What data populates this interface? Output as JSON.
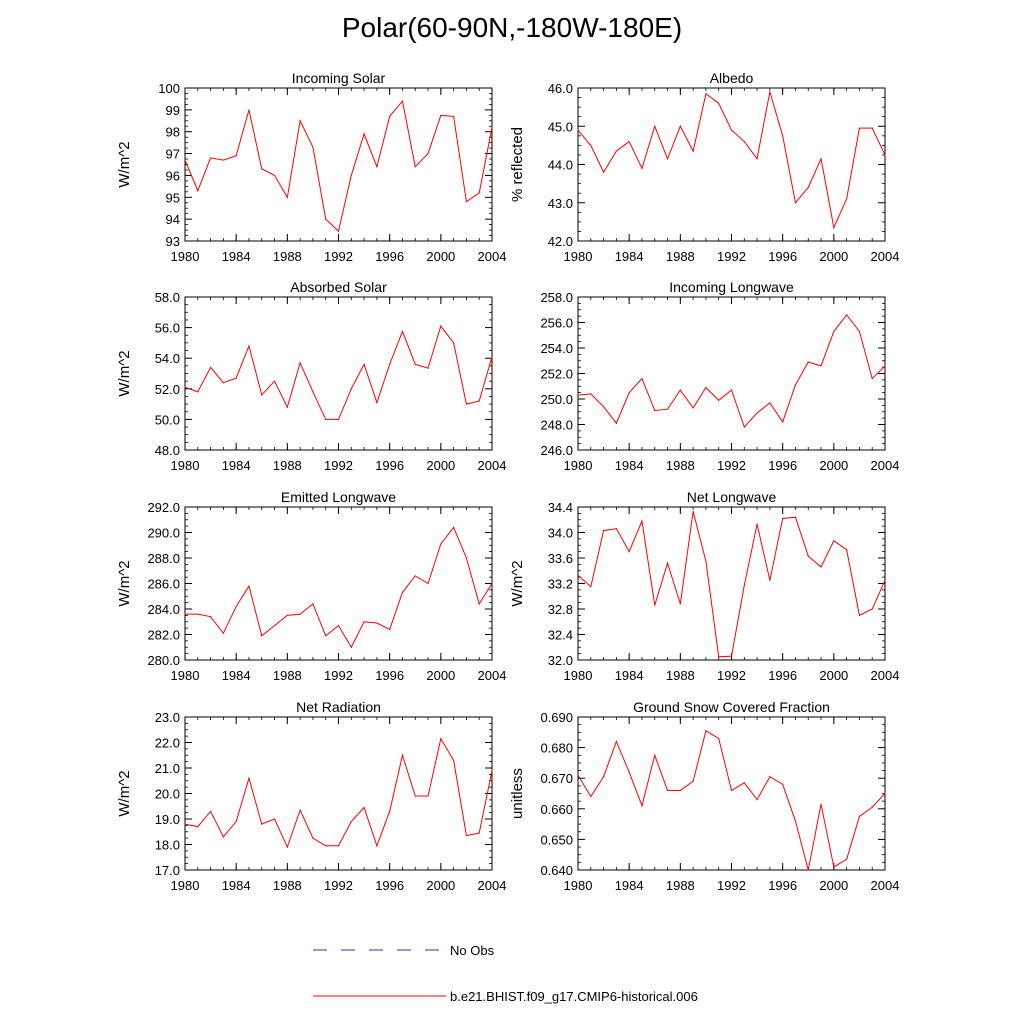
{
  "title": "Polar(60-90N,-180W-180E)",
  "colors": {
    "model": "#ff0000",
    "obs": "#3333aa",
    "axis": "#000000"
  },
  "legend": {
    "obs_label": "No Obs",
    "model_label": "b.e21.BHIST.f09_g17.CMIP6-historical.006"
  },
  "chart_data": [
    {
      "type": "line",
      "title": "Incoming Solar",
      "ylabel": "W/m^2",
      "xlim": [
        1980,
        2004
      ],
      "ylim": [
        93,
        100
      ],
      "yticks": [
        93,
        94,
        95,
        96,
        97,
        98,
        99,
        100
      ],
      "ytick_labels": [
        "93",
        "94",
        "95",
        "96",
        "97",
        "98",
        "99",
        "100"
      ],
      "xticks": [
        1980,
        1984,
        1988,
        1992,
        1996,
        2000,
        2004
      ],
      "xtick_labels": [
        "1980",
        "1984",
        "1988",
        "1992",
        "1996",
        "2000",
        "2004"
      ],
      "x": [
        1980,
        1981,
        1982,
        1983,
        1984,
        1985,
        1986,
        1987,
        1988,
        1989,
        1990,
        1991,
        1992,
        1993,
        1994,
        1995,
        1996,
        1997,
        1998,
        1999,
        2000,
        2001,
        2002,
        2003,
        2004
      ],
      "series": [
        {
          "name": "b.e21.BHIST.f09_g17.CMIP6-historical.006",
          "values": [
            96.7,
            95.3,
            96.8,
            96.7,
            96.9,
            99.0,
            96.3,
            96.0,
            95.0,
            98.5,
            97.3,
            94.0,
            93.45,
            96.0,
            97.9,
            96.4,
            98.7,
            99.4,
            96.4,
            97.0,
            98.75,
            98.7,
            94.8,
            95.2,
            98.2
          ]
        }
      ]
    },
    {
      "type": "line",
      "title": "Albedo",
      "ylabel": "% reflected",
      "xlim": [
        1980,
        2004
      ],
      "ylim": [
        42,
        46
      ],
      "yticks": [
        42,
        43,
        44,
        45,
        46
      ],
      "ytick_labels": [
        "42.0",
        "43.0",
        "44.0",
        "45.0",
        "46.0"
      ],
      "xticks": [
        1980,
        1984,
        1988,
        1992,
        1996,
        2000,
        2004
      ],
      "xtick_labels": [
        "1980",
        "1984",
        "1988",
        "1992",
        "1996",
        "2000",
        "2004"
      ],
      "x": [
        1980,
        1981,
        1982,
        1983,
        1984,
        1985,
        1986,
        1987,
        1988,
        1989,
        1990,
        1991,
        1992,
        1993,
        1994,
        1995,
        1996,
        1997,
        1998,
        1999,
        2000,
        2001,
        2002,
        2003,
        2004
      ],
      "series": [
        {
          "name": "b.e21.BHIST.f09_g17.CMIP6-historical.006",
          "values": [
            44.9,
            44.5,
            43.8,
            44.35,
            44.6,
            43.9,
            45.0,
            44.15,
            45.0,
            44.35,
            45.85,
            45.6,
            44.9,
            44.6,
            44.15,
            45.9,
            44.75,
            43.0,
            43.4,
            44.15,
            42.35,
            43.1,
            44.95,
            44.95,
            44.25
          ]
        }
      ]
    },
    {
      "type": "line",
      "title": "Absorbed Solar",
      "ylabel": "W/m^2",
      "xlim": [
        1980,
        2004
      ],
      "ylim": [
        48,
        58
      ],
      "yticks": [
        48,
        50,
        52,
        54,
        56,
        58
      ],
      "ytick_labels": [
        "48.0",
        "50.0",
        "52.0",
        "54.0",
        "56.0",
        "58.0"
      ],
      "xticks": [
        1980,
        1984,
        1988,
        1992,
        1996,
        2000,
        2004
      ],
      "xtick_labels": [
        "1980",
        "1984",
        "1988",
        "1992",
        "1996",
        "2000",
        "2004"
      ],
      "x": [
        1980,
        1981,
        1982,
        1983,
        1984,
        1985,
        1986,
        1987,
        1988,
        1989,
        1990,
        1991,
        1992,
        1993,
        1994,
        1995,
        1996,
        1997,
        1998,
        1999,
        2000,
        2001,
        2002,
        2003,
        2004
      ],
      "series": [
        {
          "name": "b.e21.BHIST.f09_g17.CMIP6-historical.006",
          "values": [
            52.1,
            51.8,
            53.4,
            52.4,
            52.7,
            54.8,
            51.6,
            52.5,
            50.8,
            53.7,
            51.8,
            50.0,
            50.0,
            52.0,
            53.6,
            51.1,
            53.6,
            55.75,
            53.6,
            53.35,
            56.1,
            55.0,
            51.0,
            51.2,
            54.1
          ]
        }
      ]
    },
    {
      "type": "line",
      "title": "Incoming Longwave",
      "ylabel": "",
      "xlim": [
        1980,
        2004
      ],
      "ylim": [
        246,
        258
      ],
      "yticks": [
        246,
        248,
        250,
        252,
        254,
        256,
        258
      ],
      "ytick_labels": [
        "246.0",
        "248.0",
        "250.0",
        "252.0",
        "254.0",
        "256.0",
        "258.0"
      ],
      "xticks": [
        1980,
        1984,
        1988,
        1992,
        1996,
        2000,
        2004
      ],
      "xtick_labels": [
        "1980",
        "1984",
        "1988",
        "1992",
        "1996",
        "2000",
        "2004"
      ],
      "x": [
        1980,
        1981,
        1982,
        1983,
        1984,
        1985,
        1986,
        1987,
        1988,
        1989,
        1990,
        1991,
        1992,
        1993,
        1994,
        1995,
        1996,
        1997,
        1998,
        1999,
        2000,
        2001,
        2002,
        2003,
        2004
      ],
      "series": [
        {
          "name": "b.e21.BHIST.f09_g17.CMIP6-historical.006",
          "values": [
            250.3,
            250.4,
            249.4,
            248.1,
            250.5,
            251.6,
            249.1,
            249.2,
            250.7,
            249.3,
            250.9,
            249.9,
            250.7,
            247.8,
            248.9,
            249.7,
            248.2,
            251.1,
            252.9,
            252.6,
            255.3,
            256.6,
            255.3,
            251.6,
            252.6
          ]
        }
      ]
    },
    {
      "type": "line",
      "title": "Emitted Longwave",
      "ylabel": "W/m^2",
      "xlim": [
        1980,
        2004
      ],
      "ylim": [
        280,
        292
      ],
      "yticks": [
        280,
        282,
        284,
        286,
        288,
        290,
        292
      ],
      "ytick_labels": [
        "280.0",
        "282.0",
        "284.0",
        "286.0",
        "288.0",
        "290.0",
        "292.0"
      ],
      "xticks": [
        1980,
        1984,
        1988,
        1992,
        1996,
        2000,
        2004
      ],
      "xtick_labels": [
        "1980",
        "1984",
        "1988",
        "1992",
        "1996",
        "2000",
        "2004"
      ],
      "x": [
        1980,
        1981,
        1982,
        1983,
        1984,
        1985,
        1986,
        1987,
        1988,
        1989,
        1990,
        1991,
        1992,
        1993,
        1994,
        1995,
        1996,
        1997,
        1998,
        1999,
        2000,
        2001,
        2002,
        2003,
        2004
      ],
      "series": [
        {
          "name": "b.e21.BHIST.f09_g17.CMIP6-historical.006",
          "values": [
            283.6,
            283.6,
            283.4,
            282.1,
            284.2,
            285.8,
            281.9,
            282.7,
            283.5,
            283.6,
            284.4,
            281.9,
            282.7,
            281.0,
            283.0,
            282.9,
            282.4,
            285.3,
            286.6,
            286.0,
            289.1,
            290.4,
            288.0,
            284.4,
            286.0
          ]
        }
      ]
    },
    {
      "type": "line",
      "title": "Net Longwave",
      "ylabel": "W/m^2",
      "xlim": [
        1980,
        2004
      ],
      "ylim": [
        32.0,
        34.4
      ],
      "yticks": [
        32.0,
        32.4,
        32.8,
        33.2,
        33.6,
        34.0,
        34.4
      ],
      "ytick_labels": [
        "32.0",
        "32.4",
        "32.8",
        "33.2",
        "33.6",
        "34.0",
        "34.4"
      ],
      "xticks": [
        1980,
        1984,
        1988,
        1992,
        1996,
        2000,
        2004
      ],
      "xtick_labels": [
        "1980",
        "1984",
        "1988",
        "1992",
        "1996",
        "2000",
        "2004"
      ],
      "x": [
        1980,
        1981,
        1982,
        1983,
        1984,
        1985,
        1986,
        1987,
        1988,
        1989,
        1990,
        1991,
        1992,
        1993,
        1994,
        1995,
        1996,
        1997,
        1998,
        1999,
        2000,
        2001,
        2002,
        2003,
        2004
      ],
      "series": [
        {
          "name": "b.e21.BHIST.f09_g17.CMIP6-historical.006",
          "values": [
            33.33,
            33.15,
            34.03,
            34.06,
            33.7,
            34.18,
            32.86,
            33.52,
            32.88,
            34.33,
            33.55,
            32.05,
            32.06,
            33.17,
            34.13,
            33.25,
            34.22,
            34.24,
            33.63,
            33.46,
            33.87,
            33.73,
            32.7,
            32.8,
            33.25
          ]
        }
      ]
    },
    {
      "type": "line",
      "title": "Net Radiation",
      "ylabel": "W/m^2",
      "xlim": [
        1980,
        2004
      ],
      "ylim": [
        17,
        23
      ],
      "yticks": [
        17,
        18,
        19,
        20,
        21,
        22,
        23
      ],
      "ytick_labels": [
        "17.0",
        "18.0",
        "19.0",
        "20.0",
        "21.0",
        "22.0",
        "23.0"
      ],
      "xticks": [
        1980,
        1984,
        1988,
        1992,
        1996,
        2000,
        2004
      ],
      "xtick_labels": [
        "1980",
        "1984",
        "1988",
        "1992",
        "1996",
        "2000",
        "2004"
      ],
      "x": [
        1980,
        1981,
        1982,
        1983,
        1984,
        1985,
        1986,
        1987,
        1988,
        1989,
        1990,
        1991,
        1992,
        1993,
        1994,
        1995,
        1996,
        1997,
        1998,
        1999,
        2000,
        2001,
        2002,
        2003,
        2004
      ],
      "series": [
        {
          "name": "b.e21.BHIST.f09_g17.CMIP6-historical.006",
          "values": [
            18.8,
            18.7,
            19.3,
            18.3,
            18.9,
            20.6,
            18.8,
            19.0,
            17.9,
            19.35,
            18.25,
            17.95,
            17.95,
            18.9,
            19.45,
            17.95,
            19.3,
            21.5,
            19.9,
            19.9,
            22.15,
            21.3,
            18.35,
            18.45,
            20.9
          ]
        }
      ]
    },
    {
      "type": "line",
      "title": "Ground Snow Covered Fraction",
      "ylabel": "unitless",
      "xlim": [
        1980,
        2004
      ],
      "ylim": [
        0.64,
        0.69
      ],
      "yticks": [
        0.64,
        0.65,
        0.66,
        0.67,
        0.68,
        0.69
      ],
      "ytick_labels": [
        "0.640",
        "0.650",
        "0.660",
        "0.670",
        "0.680",
        "0.690"
      ],
      "xticks": [
        1980,
        1984,
        1988,
        1992,
        1996,
        2000,
        2004
      ],
      "xtick_labels": [
        "1980",
        "1984",
        "1988",
        "1992",
        "1996",
        "2000",
        "2004"
      ],
      "x": [
        1980,
        1981,
        1982,
        1983,
        1984,
        1985,
        1986,
        1987,
        1988,
        1989,
        1990,
        1991,
        1992,
        1993,
        1994,
        1995,
        1996,
        1997,
        1998,
        1999,
        2000,
        2001,
        2002,
        2003,
        2004
      ],
      "series": [
        {
          "name": "b.e21.BHIST.f09_g17.CMIP6-historical.006",
          "values": [
            0.671,
            0.664,
            0.6705,
            0.682,
            0.672,
            0.661,
            0.6775,
            0.666,
            0.666,
            0.669,
            0.6855,
            0.683,
            0.666,
            0.6685,
            0.663,
            0.6705,
            0.668,
            0.656,
            0.64,
            0.6615,
            0.641,
            0.6435,
            0.6575,
            0.6605,
            0.665
          ]
        }
      ]
    }
  ]
}
